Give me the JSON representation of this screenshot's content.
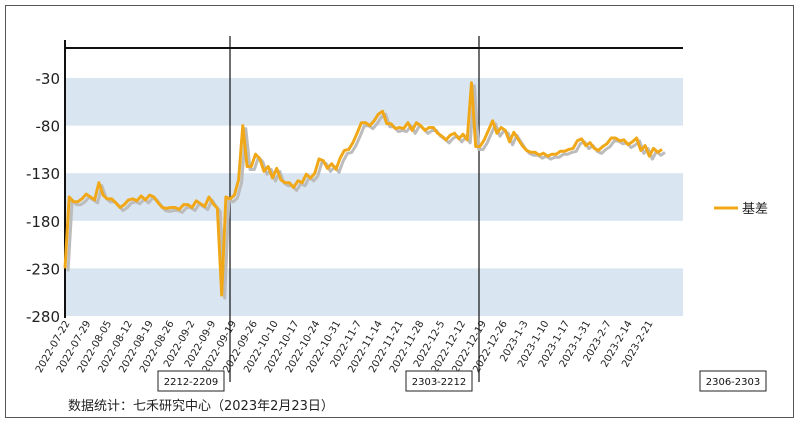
{
  "chart_data": {
    "type": "line",
    "title": "",
    "xlabel": "",
    "ylabel": "",
    "ylim": [
      -280,
      -10
    ],
    "y_ticks": [
      -30,
      -80,
      -130,
      -180,
      -230,
      -280
    ],
    "x_tick_labels": [
      "2022-07-22",
      "2022-07-29",
      "2022-08-05",
      "2022-08-12",
      "2022-08-19",
      "2022-08-26",
      "2022-09-2",
      "2022-09-9",
      "2022-09-19",
      "2022-09-26",
      "2022-10-10",
      "2022-10-17",
      "2022-10-24",
      "2022-10-31",
      "2022-11-7",
      "2022-11-14",
      "2022-11-21",
      "2022-11-28",
      "2022-12-5",
      "2022-12-12",
      "2022-12-19",
      "2022-12-26",
      "2023-1-3",
      "2023-1-10",
      "2023-1-17",
      "2023-1-31",
      "2023-2-7",
      "2023-2-14",
      "2023-2-21"
    ],
    "series": [
      {
        "name": "基差",
        "color": "#f0a818",
        "values": [
          -230,
          -155,
          -160,
          -160,
          -157,
          -152,
          -155,
          -158,
          -140,
          -153,
          -157,
          -157,
          -161,
          -166,
          -163,
          -158,
          -157,
          -159,
          -154,
          -158,
          -153,
          -155,
          -161,
          -166,
          -167,
          -166,
          -166,
          -168,
          -163,
          -163,
          -166,
          -159,
          -162,
          -165,
          -155,
          -162,
          -167,
          -258,
          -155,
          -157,
          -153,
          -137,
          -80,
          -123,
          -123,
          -110,
          -115,
          -128,
          -123,
          -135,
          -125,
          -137,
          -140,
          -140,
          -145,
          -138,
          -140,
          -131,
          -135,
          -130,
          -115,
          -117,
          -125,
          -120,
          -126,
          -114,
          -106,
          -105,
          -98,
          -88,
          -77,
          -77,
          -80,
          -75,
          -68,
          -65,
          -78,
          -78,
          -83,
          -82,
          -83,
          -77,
          -85,
          -77,
          -80,
          -85,
          -82,
          -82,
          -88,
          -91,
          -95,
          -90,
          -88,
          -94,
          -89,
          -95,
          -35,
          -102,
          -102,
          -95,
          -85,
          -75,
          -88,
          -82,
          -85,
          -97,
          -87,
          -94,
          -101,
          -106,
          -108,
          -108,
          -111,
          -109,
          -112,
          -110,
          -110,
          -107,
          -107,
          -105,
          -104,
          -96,
          -94,
          -101,
          -98,
          -104,
          -106,
          -102,
          -99,
          -93,
          -93,
          -96,
          -95,
          -100,
          -97,
          -93,
          -106,
          -101,
          -112,
          -104,
          -108,
          -105
        ]
      }
    ],
    "background_bands": [
      [
        -80,
        -30
      ],
      [
        -180,
        -130
      ],
      [
        -280,
        -230
      ]
    ],
    "band_color": "#d9e5f1",
    "legend_position": "right",
    "grid": false,
    "segment_labels": [
      "2212-2209",
      "2303-2212",
      "2306-2303"
    ],
    "segment_label_dates": [
      "2022-09-19",
      "2022-12-19",
      "2023-2-21"
    ]
  },
  "source_note": "数据统计：七禾研究中心（2023年2月23日）"
}
